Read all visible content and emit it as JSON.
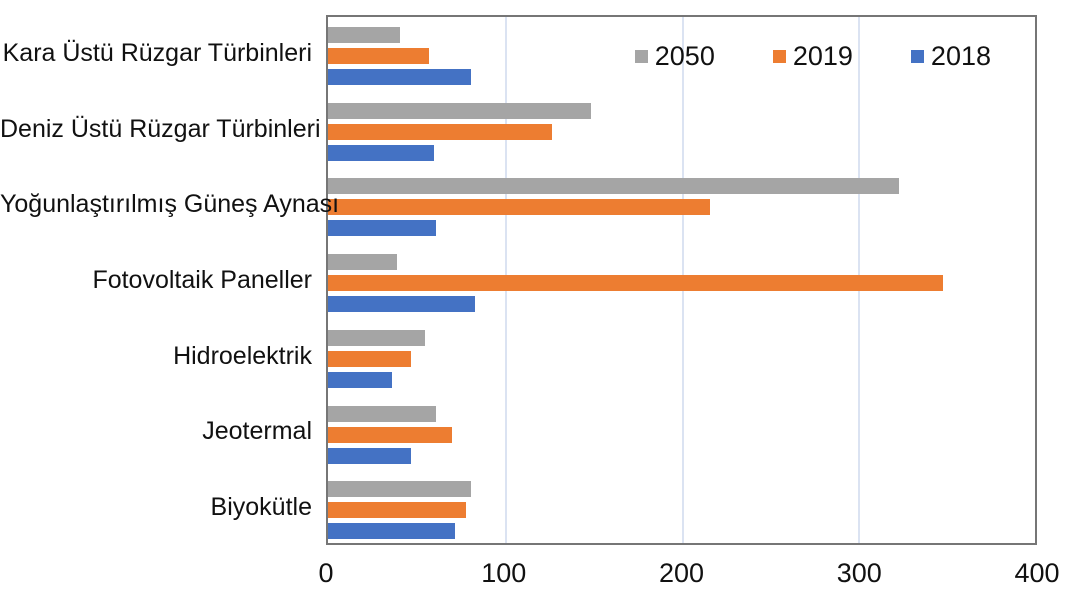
{
  "chart_data": {
    "type": "bar",
    "orientation": "horizontal",
    "title": "",
    "xlabel": "",
    "ylabel": "",
    "categories": [
      "Kara Üstü Rüzgar Türbinleri",
      "Deniz Üstü Rüzgar Türbinleri",
      "Yoğunlaştırılmış Güneş Aynası",
      "Fotovoltaik Paneller",
      "Hidroelektrik",
      "Jeotermal",
      "Biyokütle"
    ],
    "series": [
      {
        "name": "2050",
        "color": "#a5a5a5",
        "values": [
          41,
          149,
          323,
          39,
          55,
          61,
          81
        ]
      },
      {
        "name": "2019",
        "color": "#ed7d31",
        "values": [
          57,
          127,
          216,
          348,
          47,
          70,
          78
        ]
      },
      {
        "name": "2018",
        "color": "#4472c4",
        "values": [
          81,
          60,
          61,
          83,
          36,
          47,
          72
        ]
      }
    ],
    "xlim": [
      0,
      400
    ],
    "xticks": [
      "0",
      "100",
      "200",
      "300",
      "400"
    ],
    "legend_position": "top-right-inside",
    "grid": "vertical",
    "gridline_color": "#dbe3f2",
    "axis_border_color": "#767676",
    "text_color": "#111111",
    "background_color": "#ffffff"
  }
}
